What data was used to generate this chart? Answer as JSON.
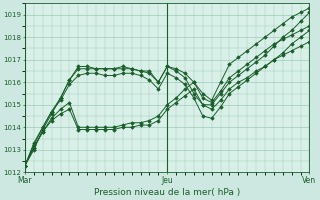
{
  "xlabel": "Pression niveau de la mer( hPa )",
  "bg_color": "#cce8e0",
  "plot_bg_color": "#d8f0e8",
  "grid_color": "#a0c8b8",
  "line_color": "#1a5e2a",
  "ylim": [
    1012.0,
    1019.5
  ],
  "yticks": [
    1012,
    1013,
    1014,
    1015,
    1016,
    1017,
    1018,
    1019
  ],
  "xtick_labels": [
    "Mar",
    "Jeu",
    "Ven"
  ],
  "xtick_positions": [
    0,
    16,
    32
  ],
  "x_vlines": [
    0,
    16,
    32
  ],
  "series": [
    [
      1012.3,
      1013.0,
      1013.9,
      1014.6,
      1015.3,
      1016.1,
      1016.7,
      1016.7,
      1016.6,
      1016.6,
      1016.6,
      1016.7,
      1016.6,
      1016.5,
      1016.5,
      1016.0,
      1016.7,
      1016.6,
      1016.4,
      1016.0,
      1015.5,
      1015.2,
      1016.0,
      1016.8,
      1017.1,
      1017.4,
      1017.7,
      1018.0,
      1018.3,
      1018.6,
      1018.9,
      1019.1,
      1019.3
    ],
    [
      1012.3,
      1013.1,
      1013.8,
      1014.4,
      1014.8,
      1015.1,
      1014.0,
      1014.0,
      1014.0,
      1014.0,
      1014.0,
      1014.1,
      1014.2,
      1014.2,
      1014.3,
      1014.5,
      1015.0,
      1015.3,
      1015.7,
      1016.0,
      1015.3,
      1015.1,
      1015.6,
      1016.2,
      1016.5,
      1016.8,
      1017.1,
      1017.4,
      1017.7,
      1017.9,
      1018.1,
      1018.3,
      1018.5
    ],
    [
      1012.3,
      1013.1,
      1013.8,
      1014.3,
      1014.6,
      1014.8,
      1013.9,
      1013.9,
      1013.9,
      1013.9,
      1013.9,
      1014.0,
      1014.0,
      1014.1,
      1014.1,
      1014.3,
      1014.8,
      1015.1,
      1015.4,
      1015.7,
      1015.0,
      1014.8,
      1015.2,
      1015.7,
      1016.0,
      1016.2,
      1016.5,
      1016.7,
      1017.0,
      1017.2,
      1017.4,
      1017.6,
      1017.8
    ],
    [
      1012.3,
      1013.2,
      1014.0,
      1014.7,
      1015.3,
      1016.1,
      1016.6,
      1016.6,
      1016.6,
      1016.6,
      1016.6,
      1016.6,
      1016.6,
      1016.5,
      1016.4,
      1016.0,
      1016.7,
      1016.5,
      1016.2,
      1015.5,
      1015.0,
      1015.0,
      1015.5,
      1016.0,
      1016.3,
      1016.6,
      1016.9,
      1017.2,
      1017.6,
      1018.0,
      1018.3,
      1018.7,
      1019.1
    ],
    [
      1012.3,
      1013.3,
      1014.0,
      1014.7,
      1015.2,
      1015.9,
      1016.3,
      1016.4,
      1016.4,
      1016.3,
      1016.3,
      1016.4,
      1016.4,
      1016.3,
      1016.1,
      1015.7,
      1016.4,
      1016.2,
      1015.9,
      1015.3,
      1014.5,
      1014.4,
      1014.9,
      1015.5,
      1015.8,
      1016.1,
      1016.4,
      1016.7,
      1017.0,
      1017.3,
      1017.7,
      1018.0,
      1018.3
    ]
  ]
}
